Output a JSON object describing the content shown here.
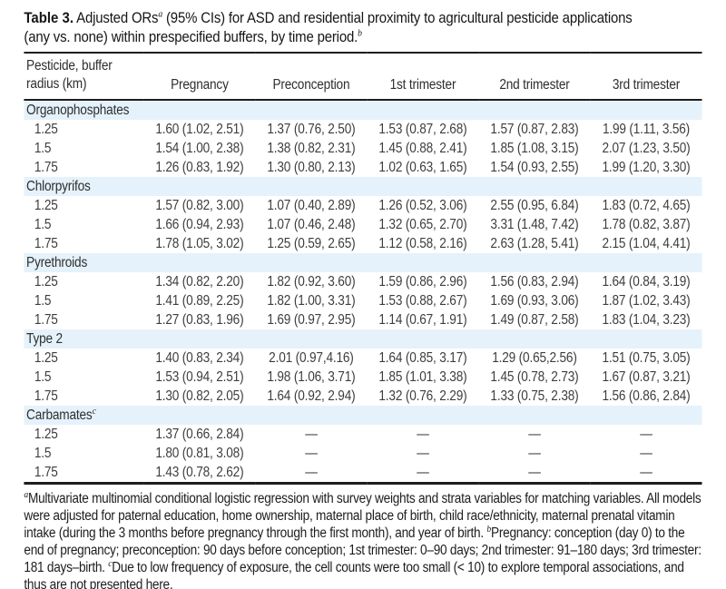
{
  "colors": {
    "section_band": "#e5f2fb",
    "rule": "#1d1d1b"
  },
  "title": {
    "line1": {
      "bold": "Table 3.",
      "pre_sup": " Adjusted ORs",
      "sup": "a",
      "post": " (95% CIs) for ASD and residential proximity to agricultural pesticide applications"
    },
    "line2": {
      "text": "(any vs. none) within prespecified buffers, by time period.",
      "sup": "b"
    }
  },
  "header": {
    "col0": [
      "Pesticide, buffer",
      "radius (km)"
    ],
    "periods": [
      "Pregnancy",
      "Preconception",
      "1st trimester",
      "2nd trimester",
      "3rd trimester"
    ]
  },
  "sections": [
    {
      "name": "Organophosphates",
      "sup": "",
      "rows": [
        {
          "radius": "1.25",
          "values": [
            "1.60 (1.02, 2.51)",
            "1.37 (0.76, 2.50)",
            "1.53 (0.87, 2.68)",
            "1.57 (0.87, 2.83)",
            "1.99 (1.11, 3.56)"
          ]
        },
        {
          "radius": "1.5",
          "values": [
            "1.54 (1.00, 2.38)",
            "1.38 (0.82, 2.31)",
            "1.45 (0.88, 2.41)",
            "1.85 (1.08, 3.15)",
            "2.07 (1.23, 3.50)"
          ]
        },
        {
          "radius": "1.75",
          "values": [
            "1.26 (0.83, 1.92)",
            "1.30 (0.80, 2.13)",
            "1.02 (0.63, 1.65)",
            "1.54 (0.93, 2.55)",
            "1.99 (1.20, 3.30)"
          ]
        }
      ]
    },
    {
      "name": "Chlorpyrifos",
      "sup": "",
      "rows": [
        {
          "radius": "1.25",
          "values": [
            "1.57 (0.82, 3.00)",
            "1.07 (0.40, 2.89)",
            "1.26 (0.52, 3.06)",
            "2.55 (0.95, 6.84)",
            "1.83 (0.72, 4.65)"
          ]
        },
        {
          "radius": "1.5",
          "values": [
            "1.66 (0.94, 2.93)",
            "1.07 (0.46, 2.48)",
            "1.32 (0.65, 2.70)",
            "3.31 (1.48, 7.42)",
            "1.78 (0.82, 3.87)"
          ]
        },
        {
          "radius": "1.75",
          "values": [
            "1.78 (1.05, 3.02)",
            "1.25 (0.59, 2.65)",
            "1.12 (0.58, 2.16)",
            "2.63 (1.28, 5.41)",
            "2.15 (1.04, 4.41)"
          ]
        }
      ]
    },
    {
      "name": "Pyrethroids",
      "sup": "",
      "rows": [
        {
          "radius": "1.25",
          "values": [
            "1.34 (0.82, 2.20)",
            "1.82 (0.92, 3.60)",
            "1.59 (0.86, 2.96)",
            "1.56 (0.83, 2.94)",
            "1.64 (0.84, 3.19)"
          ]
        },
        {
          "radius": "1.5",
          "values": [
            "1.41 (0.89, 2.25)",
            "1.82 (1.00, 3.31)",
            "1.53 (0.88, 2.67)",
            "1.69 (0.93, 3.06)",
            "1.87 (1.02, 3.43)"
          ]
        },
        {
          "radius": "1.75",
          "values": [
            "1.27 (0.83, 1.96)",
            "1.69 (0.97, 2.95)",
            "1.14 (0.67, 1.91)",
            "1.49 (0.87, 2.58)",
            "1.83 (1.04, 3.23)"
          ]
        }
      ]
    },
    {
      "name": "Type 2",
      "sup": "",
      "rows": [
        {
          "radius": "1.25",
          "values": [
            "1.40 (0.83, 2.34)",
            "2.01 (0.97,4.16)",
            "1.64 (0.85, 3.17)",
            "1.29 (0.65,2.56)",
            "1.51 (0.75, 3.05)"
          ]
        },
        {
          "radius": "1.5",
          "values": [
            "1.53 (0.94, 2.51)",
            "1.98 (1.06, 3.71)",
            "1.85 (1.01, 3.38)",
            "1.45 (0.78, 2.73)",
            "1.67 (0.87, 3.21)"
          ]
        },
        {
          "radius": "1.75",
          "values": [
            "1.30 (0.82, 2.05)",
            "1.64 (0.92, 2.94)",
            "1.32 (0.76, 2.29)",
            "1.33 (0.75, 2.38)",
            "1.56 (0.86, 2.84)"
          ]
        }
      ]
    },
    {
      "name": "Carbamates",
      "sup": "c",
      "rows": [
        {
          "radius": "1.25",
          "values": [
            "1.37 (0.66, 2.84)",
            "—",
            "—",
            "—",
            "—"
          ]
        },
        {
          "radius": "1.5",
          "values": [
            "1.80 (0.81, 3.08)",
            "—",
            "—",
            "—",
            "—"
          ]
        },
        {
          "radius": "1.75",
          "values": [
            "1.43 (0.78, 2.62)",
            "—",
            "—",
            "—",
            "—"
          ]
        }
      ]
    }
  ],
  "footnote": [
    {
      "sup": "a",
      "text": "Multivariate multinomial conditional logistic regression with survey weights and strata variables for matching variables. All models were adjusted for paternal education, home ownership, maternal place of birth, child race/ethnicity, maternal prenatal vitamin intake (during the 3 months before pregnancy through the first month), and year of birth. "
    },
    {
      "sup": "b",
      "text": "Pregnancy: conception (day 0) to the end of pregnancy; preconception: 90 days before conception; 1st trimester: 0–90 days; 2nd trimester: 91–180 days; 3rd trimester: 181 days–birth. "
    },
    {
      "sup": "c",
      "text": "Due to low frequency of exposure, the cell counts were too small (< 10) to explore temporal associations, and thus are not presented here."
    }
  ]
}
